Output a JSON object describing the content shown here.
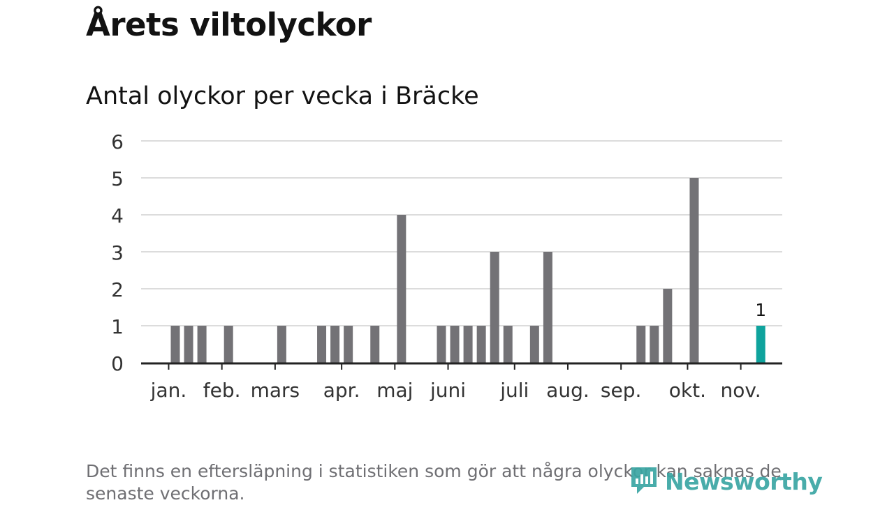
{
  "header": {
    "title": "Årets viltolyckor",
    "subtitle": "Antal olyckor per vecka i Bräcke"
  },
  "footnote": "Det finns en eftersläpning i statistiken som gör att några olyckor kan saknas de senaste veckorna.",
  "logo": {
    "text": "Newsworthy",
    "icon": "newsworthy-logo-icon"
  },
  "colors": {
    "bar": "#737276",
    "highlight": "#0fa39d",
    "grid": "#dcdcdc",
    "axis": "#222222",
    "text": "#121212",
    "footnote": "#6f6f73",
    "brand": "#3aa6a3"
  },
  "chart_data": {
    "type": "bar",
    "title": "Antal olyckor per vecka i Bräcke",
    "xlabel": "",
    "ylabel": "",
    "ylim": [
      0,
      6
    ],
    "y_ticks": [
      "0",
      "1",
      "2",
      "3",
      "4",
      "5",
      "6"
    ],
    "grid": true,
    "x_week_range": [
      1,
      48
    ],
    "months": [
      {
        "label": "jan.",
        "week": 2.5
      },
      {
        "label": "feb.",
        "week": 6.5
      },
      {
        "label": "mars",
        "week": 10.5
      },
      {
        "label": "apr.",
        "week": 15.5
      },
      {
        "label": "maj",
        "week": 19.5
      },
      {
        "label": "juni",
        "week": 23.5
      },
      {
        "label": "juli",
        "week": 28.5
      },
      {
        "label": "aug.",
        "week": 32.5
      },
      {
        "label": "sep.",
        "week": 36.5
      },
      {
        "label": "okt.",
        "week": 41.5
      },
      {
        "label": "nov.",
        "week": 45.5
      }
    ],
    "series": [
      {
        "weeks": [
          3,
          4,
          5,
          7,
          11,
          14,
          15,
          16,
          18,
          20,
          23,
          24,
          25,
          26,
          27,
          28,
          30,
          31,
          38,
          39,
          40,
          42,
          47
        ],
        "values": [
          1,
          1,
          1,
          1,
          1,
          1,
          1,
          1,
          1,
          4,
          1,
          1,
          1,
          1,
          3,
          1,
          1,
          3,
          1,
          1,
          2,
          5,
          1
        ]
      }
    ],
    "highlight": {
      "week": 47,
      "value": 1,
      "label": "1"
    }
  }
}
